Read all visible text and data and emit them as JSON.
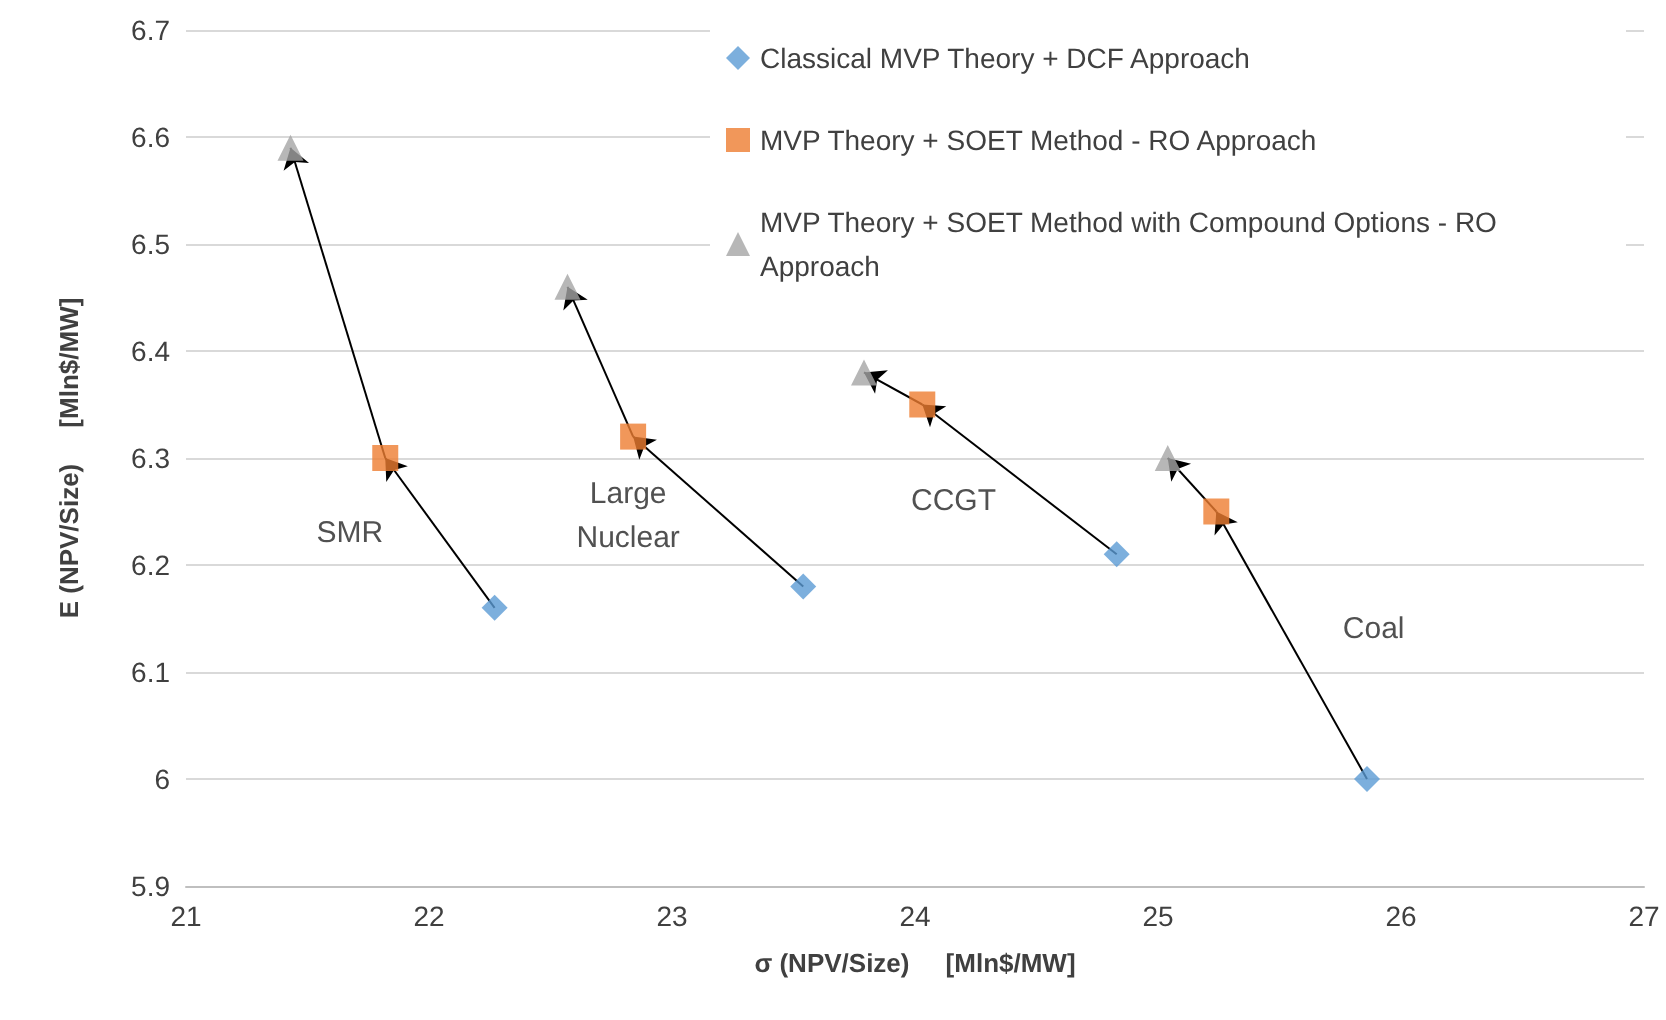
{
  "chart_data": {
    "type": "scatter",
    "xlabel": "σ (NPV/Size)     [Mln$/MW]",
    "ylabel": "E (NPV/Size)     [Mln$/MW]",
    "xlim": [
      21,
      27
    ],
    "xticks": [
      21,
      22,
      23,
      24,
      25,
      26,
      27
    ],
    "ylim": [
      5.9,
      6.7
    ],
    "yticks": [
      5.9,
      6,
      6.1,
      6.2,
      6.3,
      6.4,
      6.5,
      6.6,
      6.7
    ],
    "grid": "y",
    "legend": "top right",
    "series": [
      {
        "name": "Classical MVP Theory + DCF Approach",
        "color": "#5b9bd5",
        "marker": "diamond",
        "x": [
          22.27,
          23.54,
          24.83,
          25.86
        ],
        "values": [
          6.16,
          6.18,
          6.21,
          6.0
        ]
      },
      {
        "name": "MVP Theory + SOET Method - RO Approach",
        "color": "#ed7d31",
        "marker": "square",
        "x": [
          21.82,
          22.84,
          24.03,
          25.24
        ],
        "values": [
          6.3,
          6.32,
          6.35,
          6.25
        ]
      },
      {
        "name": "MVP Theory + SOET Method with Compound Options - RO Approach",
        "color": "#a5a5a5",
        "marker": "triangle",
        "x": [
          21.43,
          22.57,
          23.79,
          25.04
        ],
        "values": [
          6.59,
          6.46,
          6.38,
          6.3
        ]
      }
    ],
    "annotations": [
      "SMR",
      "Large\nNuclear",
      "CCGT",
      "Coal"
    ]
  }
}
